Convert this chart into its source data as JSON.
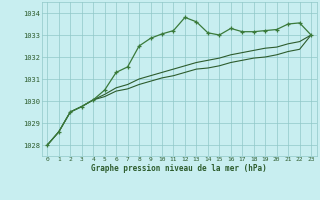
{
  "title": "Graphe pression niveau de la mer (hPa)",
  "background_color": "#c8eef0",
  "grid_color": "#90c8c8",
  "line_color_dark": "#2d5c2d",
  "line_color_med": "#3a7a3a",
  "xlim": [
    -0.5,
    23.5
  ],
  "ylim": [
    1027.5,
    1034.5
  ],
  "yticks": [
    1028,
    1029,
    1030,
    1031,
    1032,
    1033,
    1034
  ],
  "xticks": [
    0,
    1,
    2,
    3,
    4,
    5,
    6,
    7,
    8,
    9,
    10,
    11,
    12,
    13,
    14,
    15,
    16,
    17,
    18,
    19,
    20,
    21,
    22,
    23
  ],
  "series_peak": [
    1028.0,
    1028.6,
    1029.5,
    1029.75,
    1030.05,
    1030.5,
    1031.3,
    1031.55,
    1032.5,
    1032.85,
    1033.05,
    1033.2,
    1033.8,
    1033.6,
    1033.1,
    1033.0,
    1033.3,
    1033.15,
    1033.15,
    1033.2,
    1033.25,
    1033.5,
    1033.55,
    1033.0
  ],
  "series_upper": [
    1028.0,
    1028.6,
    1029.5,
    1029.75,
    1030.05,
    1030.3,
    1030.6,
    1030.75,
    1031.0,
    1031.15,
    1031.3,
    1031.45,
    1031.6,
    1031.75,
    1031.85,
    1031.95,
    1032.1,
    1032.2,
    1032.3,
    1032.4,
    1032.45,
    1032.6,
    1032.7,
    1033.0
  ],
  "series_lower": [
    1028.0,
    1028.6,
    1029.5,
    1029.75,
    1030.05,
    1030.2,
    1030.45,
    1030.55,
    1030.75,
    1030.9,
    1031.05,
    1031.15,
    1031.3,
    1031.45,
    1031.5,
    1031.6,
    1031.75,
    1031.85,
    1031.95,
    1032.0,
    1032.1,
    1032.25,
    1032.35,
    1033.0
  ]
}
